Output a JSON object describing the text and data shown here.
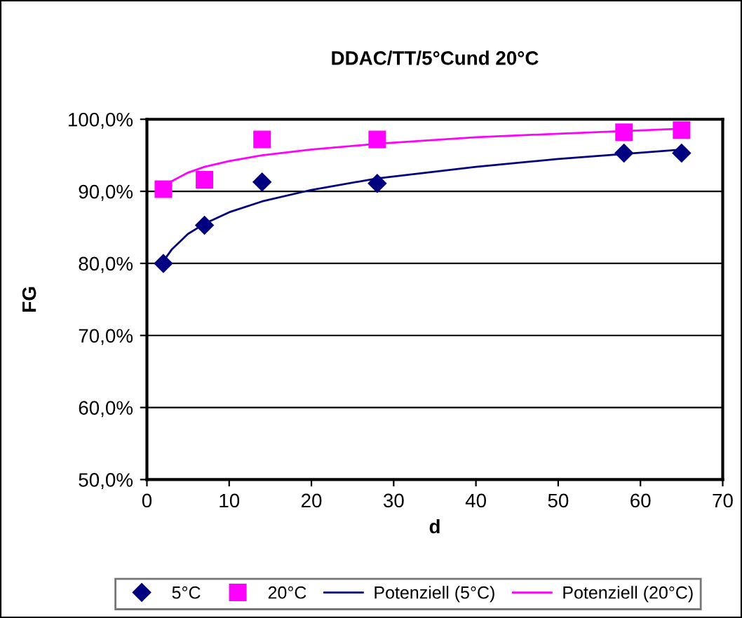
{
  "chart_data": {
    "type": "scatter",
    "title": "DDAC/TT/5°Cund 20°C",
    "xlabel": "d",
    "ylabel": "FG",
    "x": [
      2,
      7,
      14,
      28,
      58,
      65
    ],
    "series": [
      {
        "name": "5°C",
        "color": "#000080",
        "marker": "diamond",
        "values": [
          80.0,
          85.3,
          91.3,
          91.1,
          95.3,
          95.3
        ]
      },
      {
        "name": "20°C",
        "color": "#ff00ff",
        "marker": "square",
        "values": [
          90.3,
          91.6,
          97.2,
          97.2,
          98.2,
          98.5
        ]
      },
      {
        "name": "Potenziell (5°C)",
        "type": "line",
        "color": "#000080",
        "marker": "none",
        "x": [
          2,
          3,
          5,
          7,
          10,
          14,
          20,
          28,
          40,
          50,
          65
        ],
        "values": [
          80.3,
          81.9,
          84.1,
          85.5,
          87.1,
          88.6,
          90.2,
          91.8,
          93.4,
          94.5,
          95.8
        ]
      },
      {
        "name": "Potenziell (20°C)",
        "type": "line",
        "color": "#ff00ff",
        "marker": "none",
        "x": [
          2,
          3,
          5,
          7,
          10,
          14,
          20,
          28,
          40,
          50,
          65
        ],
        "values": [
          90.5,
          91.4,
          92.6,
          93.4,
          94.2,
          95.0,
          95.8,
          96.6,
          97.5,
          98.0,
          98.7
        ]
      }
    ],
    "xlim": [
      0,
      70
    ],
    "xticks": [
      0,
      10,
      20,
      30,
      40,
      50,
      60,
      70
    ],
    "ylim": [
      50,
      100
    ],
    "yticks": [
      {
        "value": 50,
        "label": "50,0%"
      },
      {
        "value": 60,
        "label": "60,0%"
      },
      {
        "value": 70,
        "label": "70,0%"
      },
      {
        "value": 80,
        "label": "80,0%"
      },
      {
        "value": 90,
        "label": "90,0%"
      },
      {
        "value": 100,
        "label": "100,0%"
      }
    ],
    "grid": "y",
    "legend": "bottom"
  }
}
